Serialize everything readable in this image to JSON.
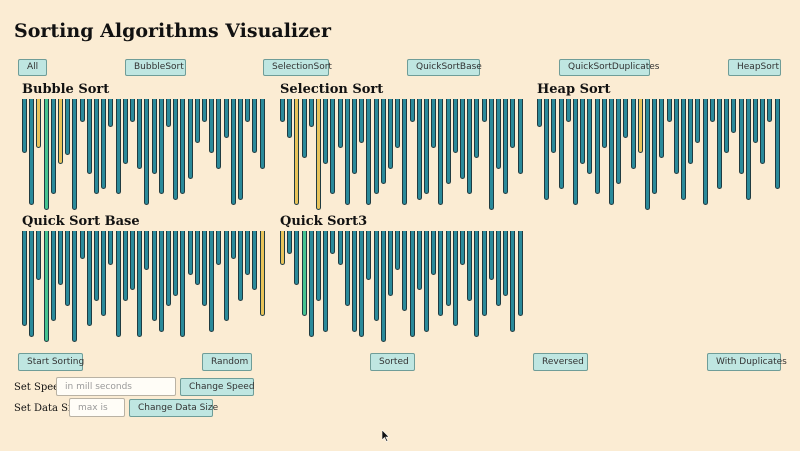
{
  "page_title": "Sorting Algorithms Visualizer",
  "tabs": [
    {
      "id": "all",
      "label": "All"
    },
    {
      "id": "bubblesort",
      "label": "BubbleSort"
    },
    {
      "id": "selectionsort",
      "label": "SelectionSort"
    },
    {
      "id": "quicksortbase",
      "label": "QuickSortBase"
    },
    {
      "id": "quicksortduplicates",
      "label": "QuickSortDuplicates"
    },
    {
      "id": "heapsort",
      "label": "HeapSort"
    }
  ],
  "panels": [
    {
      "id": "bubble",
      "title": "Bubble Sort",
      "highlights": {
        "2": "#e7c35a",
        "3": "#45c290",
        "5": "#e7c35a"
      }
    },
    {
      "id": "selection",
      "title": "Selection Sort",
      "highlights": {
        "2": "#e7c35a",
        "5": "#e7c35a"
      }
    },
    {
      "id": "heap",
      "title": "Heap Sort",
      "highlights": {
        "14": "#e7c35a"
      }
    },
    {
      "id": "quickbase",
      "title": "Quick Sort Base",
      "highlights": {
        "3": "#45c290",
        "33": "#e7c35a"
      }
    },
    {
      "id": "quick3",
      "title": "Quick Sort3",
      "highlights": {
        "0": "#e7c35a",
        "3": "#45c290"
      }
    }
  ],
  "bar_data": {
    "colors": {
      "default": "#2a8a9a",
      "compare": "#e7c35a",
      "swap": "#45c290"
    },
    "panel_values": {
      "bubble": [
        40,
        90,
        35,
        95,
        80,
        50,
        42,
        95,
        10,
        60,
        80,
        75,
        15,
        80,
        50,
        10,
        55,
        90,
        60,
        80,
        15,
        85,
        80,
        65,
        30,
        10,
        40,
        55,
        25,
        90,
        85,
        10,
        40,
        55
      ],
      "selection": [
        10,
        25,
        90,
        45,
        15,
        95,
        50,
        80,
        35,
        90,
        60,
        30,
        90,
        80,
        70,
        55,
        35,
        90,
        10,
        85,
        80,
        35,
        90,
        70,
        40,
        65,
        80,
        45,
        10,
        95,
        55,
        80,
        35,
        60
      ],
      "heap": [
        15,
        85,
        40,
        75,
        10,
        90,
        50,
        60,
        80,
        35,
        90,
        70,
        25,
        55,
        40,
        95,
        80,
        45,
        10,
        60,
        85,
        50,
        30,
        90,
        10,
        75,
        40,
        20,
        60,
        85,
        30,
        50,
        10,
        75
      ],
      "quickbase": [
        80,
        90,
        35,
        95,
        75,
        40,
        60,
        95,
        15,
        80,
        55,
        70,
        20,
        90,
        55,
        45,
        90,
        25,
        75,
        85,
        60,
        50,
        90,
        30,
        40,
        60,
        85,
        20,
        75,
        15,
        55,
        30,
        45,
        70
      ],
      "quick3": [
        20,
        10,
        40,
        70,
        90,
        55,
        85,
        10,
        20,
        60,
        85,
        90,
        35,
        75,
        95,
        50,
        25,
        65,
        90,
        45,
        85,
        30,
        70,
        60,
        80,
        20,
        55,
        90,
        70,
        35,
        60,
        50,
        85,
        70
      ]
    }
  },
  "controls": {
    "start_sorting": "Start Sorting",
    "random": "Random",
    "sorted": "Sorted",
    "reversed": "Reversed",
    "with_duplicates": "With Duplicates",
    "speed_label": "Set Speed",
    "speed_placeholder": "in mill seconds",
    "change_speed": "Change Speed",
    "size_label": "Set Data Size",
    "size_placeholder": "max is",
    "change_size": "Change Data Size"
  }
}
